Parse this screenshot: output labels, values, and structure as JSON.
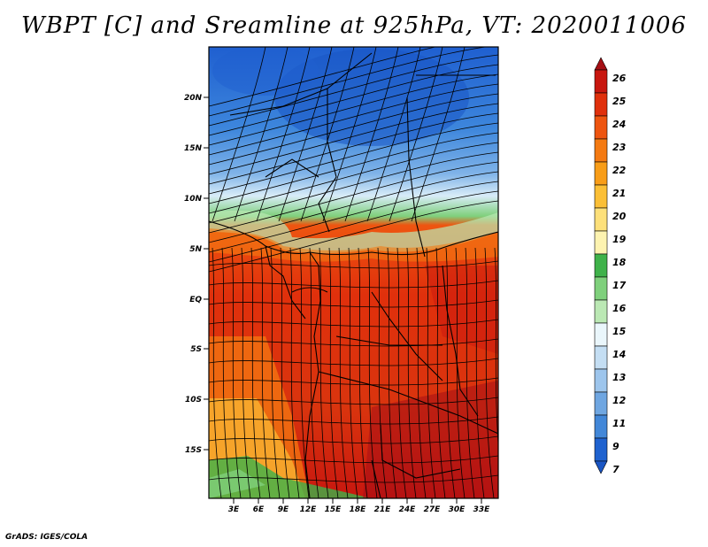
{
  "title": "WBPT [C] and Sreamline at 925hPa, VT: 2020011006",
  "credit": "GrADS: IGES/COLA",
  "map": {
    "lat_labels": [
      "20N",
      "15N",
      "10N",
      "5N",
      "EQ",
      "5S",
      "10S",
      "15S"
    ],
    "lon_labels": [
      "3E",
      "6E",
      "9E",
      "12E",
      "15E",
      "18E",
      "21E",
      "24E",
      "27E",
      "30E",
      "33E"
    ]
  },
  "colorbar": {
    "levels": [
      "26",
      "25",
      "24",
      "23",
      "22",
      "21",
      "20",
      "19",
      "18",
      "17",
      "16",
      "15",
      "14",
      "13",
      "12",
      "11",
      "9",
      "7"
    ],
    "colors": [
      "#a50f15",
      "#c8170f",
      "#e0300c",
      "#ee5510",
      "#f47a12",
      "#f89d18",
      "#fbbf36",
      "#fde07a",
      "#fdf3b0",
      "#3fb24a",
      "#7fd07c",
      "#bbe8b4",
      "#eaf6fb",
      "#c4def3",
      "#9dc5ec",
      "#6fa6e1",
      "#4287d8",
      "#1f62cf",
      "#1a56c4"
    ]
  },
  "colors": {
    "cold": "#2a6cd6",
    "hot": "#d9340e"
  }
}
